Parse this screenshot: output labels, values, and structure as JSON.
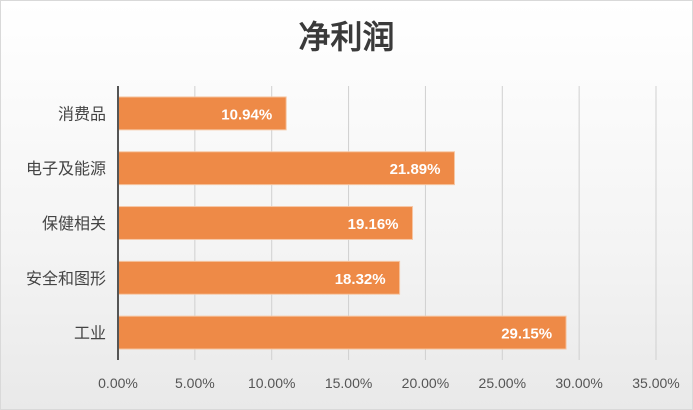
{
  "chart_data": {
    "type": "bar",
    "orientation": "horizontal",
    "title": "净利润",
    "xlabel": "",
    "ylabel": "",
    "categories": [
      "消费品",
      "电子及能源",
      "保健相关",
      "安全和图形",
      "工业"
    ],
    "values": [
      10.94,
      21.89,
      19.16,
      18.32,
      29.15
    ],
    "value_labels": [
      "10.94%",
      "21.89%",
      "19.16%",
      "18.32%",
      "29.15%"
    ],
    "xlim": [
      0,
      35
    ],
    "xticks": [
      0,
      5,
      10,
      15,
      20,
      25,
      30,
      35
    ],
    "xtick_labels": [
      "0.00%",
      "5.00%",
      "10.00%",
      "15.00%",
      "20.00%",
      "25.00%",
      "30.00%",
      "35.00%"
    ],
    "grid": "vertical",
    "legend": "none",
    "bar_color": "#ee8a47"
  }
}
